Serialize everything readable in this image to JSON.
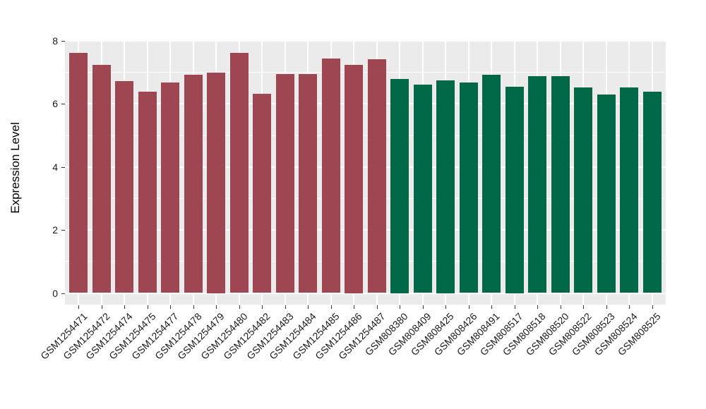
{
  "chart_data": {
    "type": "bar",
    "title": "",
    "xlabel": "",
    "ylabel": "Expression Level",
    "ylim": [
      0,
      8
    ],
    "yticks": [
      0,
      2,
      4,
      6,
      8
    ],
    "yticks_minor": [
      1,
      3,
      5,
      7
    ],
    "grid": "on",
    "legend_position": "none",
    "panel_background": "#EBEBEB",
    "gridline_color": "#FFFFFF",
    "tick_color": "#333333",
    "axis_text_color": "#1a1a1a",
    "groups": [
      {
        "name": "maroon-bars",
        "color": "#9E4652"
      },
      {
        "name": "green-bars",
        "color": "#006847"
      }
    ],
    "bars": [
      {
        "label": "GSM1254471",
        "value": 7.62,
        "group": 0
      },
      {
        "label": "GSM1254472",
        "value": 7.23,
        "group": 0
      },
      {
        "label": "GSM1254474",
        "value": 6.72,
        "group": 0
      },
      {
        "label": "GSM1254475",
        "value": 6.38,
        "group": 0
      },
      {
        "label": "GSM1254477",
        "value": 6.67,
        "group": 0
      },
      {
        "label": "GSM1254478",
        "value": 6.92,
        "group": 0
      },
      {
        "label": "GSM1254479",
        "value": 7.0,
        "group": 0
      },
      {
        "label": "GSM1254480",
        "value": 7.62,
        "group": 0
      },
      {
        "label": "GSM1254482",
        "value": 6.33,
        "group": 0
      },
      {
        "label": "GSM1254483",
        "value": 6.94,
        "group": 0
      },
      {
        "label": "GSM1254484",
        "value": 6.94,
        "group": 0
      },
      {
        "label": "GSM1254485",
        "value": 7.43,
        "group": 0
      },
      {
        "label": "GSM1254486",
        "value": 7.25,
        "group": 0
      },
      {
        "label": "GSM1254487",
        "value": 7.41,
        "group": 0
      },
      {
        "label": "GSM808380",
        "value": 6.8,
        "group": 1
      },
      {
        "label": "GSM808409",
        "value": 6.62,
        "group": 1
      },
      {
        "label": "GSM808425",
        "value": 6.75,
        "group": 1
      },
      {
        "label": "GSM808426",
        "value": 6.69,
        "group": 1
      },
      {
        "label": "GSM808491",
        "value": 6.93,
        "group": 1
      },
      {
        "label": "GSM808517",
        "value": 6.55,
        "group": 1
      },
      {
        "label": "GSM808518",
        "value": 6.87,
        "group": 1
      },
      {
        "label": "GSM808520",
        "value": 6.87,
        "group": 1
      },
      {
        "label": "GSM808522",
        "value": 6.52,
        "group": 1
      },
      {
        "label": "GSM808523",
        "value": 6.29,
        "group": 1
      },
      {
        "label": "GSM808524",
        "value": 6.53,
        "group": 1
      },
      {
        "label": "GSM808525",
        "value": 6.38,
        "group": 1
      }
    ]
  }
}
